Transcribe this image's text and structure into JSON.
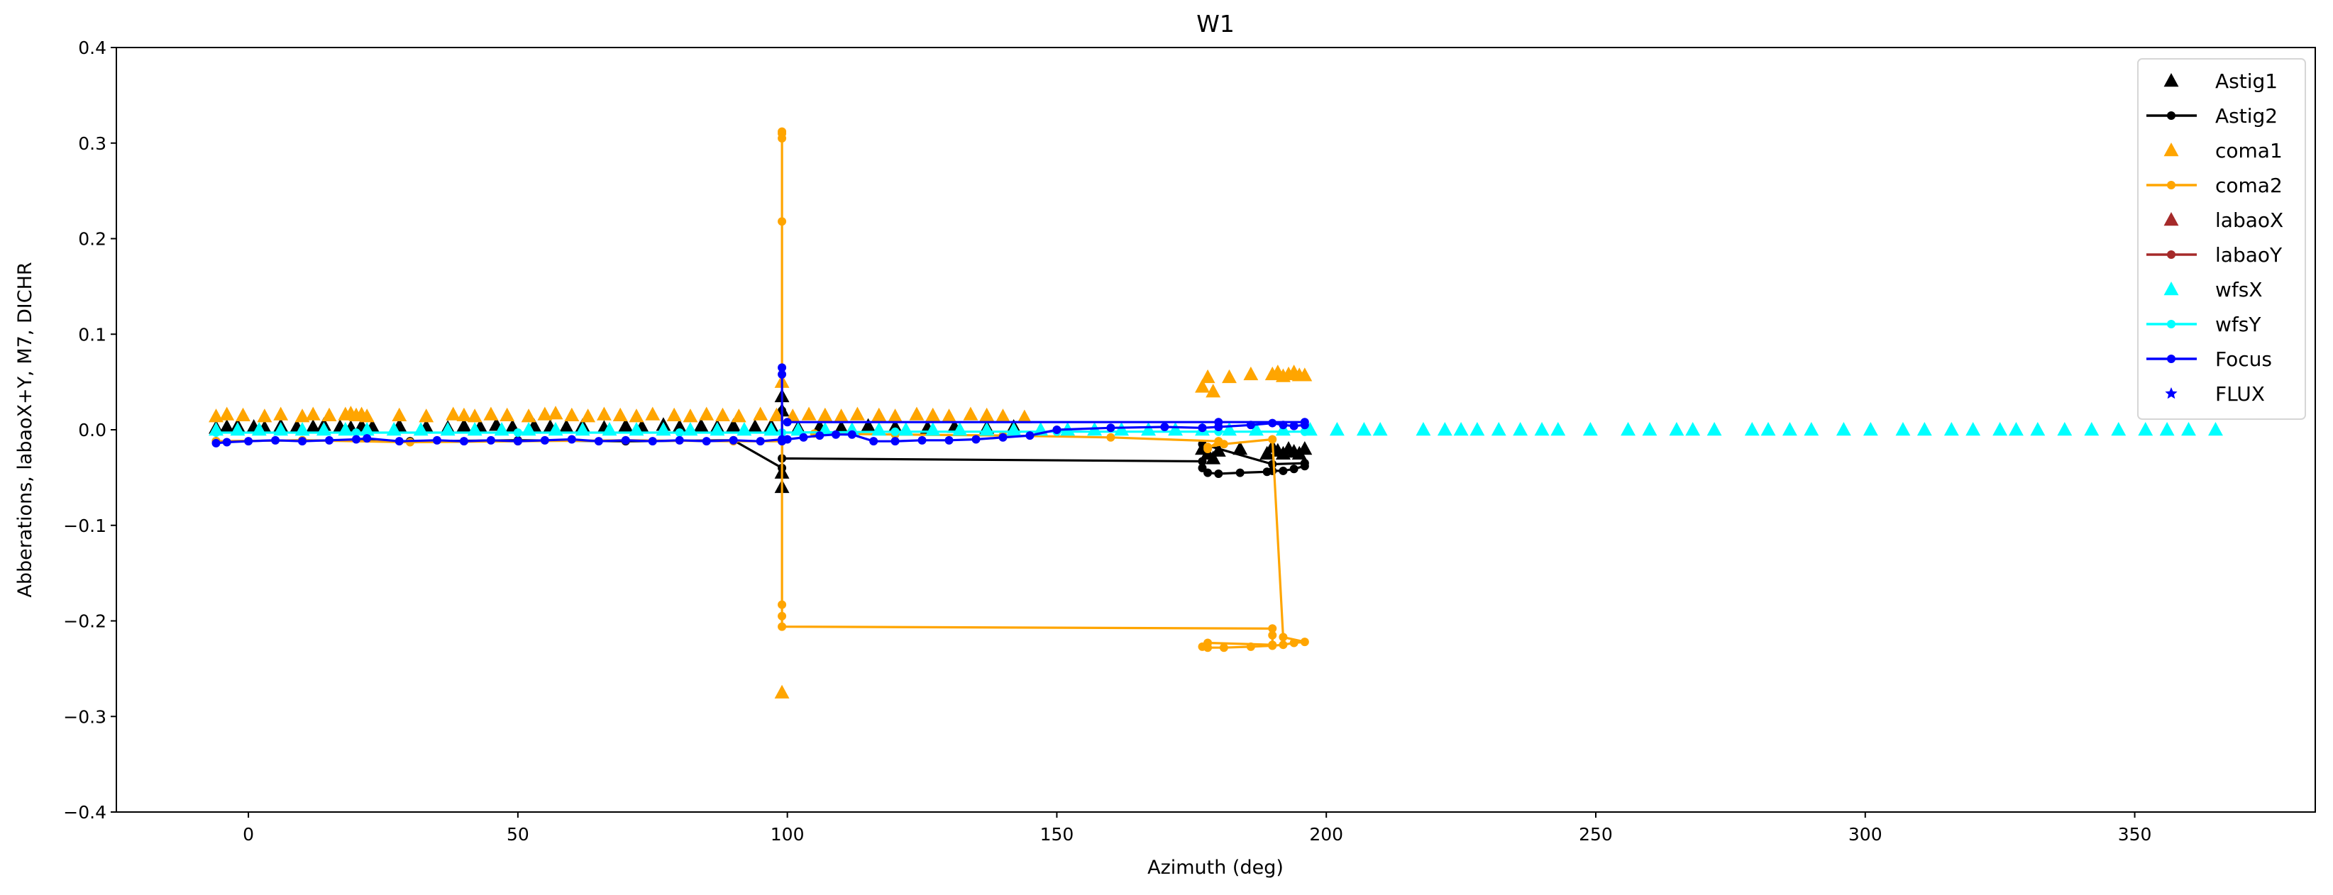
{
  "chart_data": {
    "type": "scatter",
    "title": "W1",
    "xlabel": "Azimuth (deg)",
    "ylabel": "Abberations, labaoX+Y, M7, DICHR",
    "xlim": [
      -24.5,
      383.5
    ],
    "ylim": [
      -0.4,
      0.4
    ],
    "xticks": [
      0,
      50,
      100,
      150,
      200,
      250,
      300,
      350
    ],
    "xtick_labels": [
      "0",
      "50",
      "100",
      "150",
      "200",
      "250",
      "300",
      "350"
    ],
    "yticks": [
      -0.4,
      -0.3,
      -0.2,
      -0.1,
      0.0,
      0.1,
      0.2,
      0.3,
      0.4
    ],
    "ytick_labels": [
      "−0.4",
      "−0.3",
      "−0.2",
      "−0.1",
      "0.0",
      "0.1",
      "0.2",
      "0.3",
      "0.4"
    ],
    "grid": false,
    "legend_position": "top-right",
    "series": [
      {
        "name": "Astig1",
        "style": "triangle",
        "color": "#000000",
        "x": [
          -6,
          -4,
          -2,
          1,
          3,
          6,
          9,
          12,
          14,
          17,
          19,
          21,
          23,
          28,
          33,
          37,
          40,
          43,
          46,
          49,
          53,
          56,
          59,
          62,
          66,
          70,
          73,
          77,
          80,
          84,
          87,
          90,
          94,
          97,
          99,
          99,
          99,
          99,
          102,
          106,
          110,
          115,
          120,
          126,
          131,
          137,
          142,
          177,
          178,
          179,
          180,
          184,
          189,
          190,
          191,
          192,
          193,
          194,
          195,
          196
        ],
        "y": [
          0.002,
          0.003,
          0.004,
          0.003,
          0.002,
          0.004,
          0.003,
          0.003,
          0.005,
          0.003,
          0.002,
          0.004,
          0.003,
          0.004,
          0.003,
          0.002,
          0.004,
          0.003,
          0.005,
          0.003,
          0.004,
          0.003,
          0.003,
          0.004,
          0.002,
          0.004,
          0.003,
          0.005,
          0.003,
          0.004,
          0.003,
          0.004,
          0.003,
          0.004,
          -0.06,
          -0.045,
          0.035,
          0.02,
          0.002,
          0.003,
          0.002,
          0.004,
          0.003,
          0.002,
          0.003,
          0.002,
          0.003,
          -0.02,
          -0.025,
          -0.03,
          -0.022,
          -0.02,
          -0.025,
          -0.018,
          -0.022,
          -0.025,
          -0.02,
          -0.023,
          -0.025,
          -0.02
        ]
      },
      {
        "name": "Astig2",
        "style": "line",
        "color": "#000000",
        "x": [
          -6,
          10,
          30,
          50,
          70,
          90,
          99,
          99,
          99,
          177,
          177,
          178,
          180,
          184,
          189,
          190,
          192,
          194,
          196,
          196,
          190,
          177
        ],
        "y": [
          -0.012,
          -0.011,
          -0.012,
          -0.011,
          -0.012,
          -0.011,
          -0.04,
          0.02,
          -0.03,
          -0.033,
          -0.04,
          -0.045,
          -0.046,
          -0.045,
          -0.044,
          -0.043,
          -0.043,
          -0.041,
          -0.038,
          -0.035,
          -0.036,
          -0.015
        ]
      },
      {
        "name": "coma1",
        "style": "triangle",
        "color": "#FFA500",
        "x": [
          -6,
          -4,
          -1,
          3,
          6,
          10,
          12,
          15,
          18,
          19,
          20,
          21,
          22,
          28,
          33,
          38,
          40,
          42,
          45,
          48,
          52,
          55,
          57,
          60,
          63,
          66,
          69,
          72,
          75,
          79,
          82,
          85,
          88,
          91,
          95,
          98,
          99,
          99,
          101,
          104,
          107,
          110,
          113,
          117,
          120,
          124,
          127,
          130,
          134,
          137,
          140,
          144,
          177,
          178,
          179,
          182,
          186,
          190,
          191,
          192,
          193,
          194,
          195,
          196
        ],
        "y": [
          0.014,
          0.016,
          0.015,
          0.014,
          0.016,
          0.014,
          0.016,
          0.015,
          0.016,
          0.017,
          0.015,
          0.016,
          0.014,
          0.015,
          0.014,
          0.016,
          0.015,
          0.014,
          0.016,
          0.015,
          0.014,
          0.016,
          0.017,
          0.015,
          0.014,
          0.016,
          0.015,
          0.014,
          0.016,
          0.015,
          0.014,
          0.016,
          0.015,
          0.014,
          0.016,
          0.015,
          -0.275,
          0.05,
          0.014,
          0.016,
          0.015,
          0.014,
          0.016,
          0.015,
          0.014,
          0.016,
          0.015,
          0.014,
          0.016,
          0.015,
          0.014,
          0.013,
          0.045,
          0.055,
          0.04,
          0.055,
          0.058,
          0.058,
          0.06,
          0.056,
          0.058,
          0.06,
          0.057,
          0.057
        ]
      },
      {
        "name": "coma2",
        "style": "line",
        "color": "#FFA500",
        "x": [
          -6,
          10,
          30,
          50,
          70,
          90,
          99,
          99,
          99,
          99,
          99,
          99,
          99,
          99,
          190,
          190,
          190,
          178,
          177,
          178,
          181,
          186,
          190,
          192,
          194,
          196,
          192,
          190,
          181,
          178,
          178,
          180,
          160,
          140,
          120,
          105
        ],
        "y": [
          -0.012,
          -0.011,
          -0.013,
          -0.012,
          -0.011,
          -0.012,
          -0.012,
          0.31,
          0.312,
          0.305,
          0.218,
          -0.183,
          -0.195,
          -0.206,
          -0.208,
          -0.215,
          -0.225,
          -0.223,
          -0.227,
          -0.228,
          -0.228,
          -0.227,
          -0.226,
          -0.225,
          -0.223,
          -0.222,
          -0.217,
          -0.01,
          -0.015,
          -0.018,
          -0.02,
          -0.012,
          -0.008,
          -0.006,
          -0.005,
          -0.004
        ]
      },
      {
        "name": "labaoX",
        "style": "triangle",
        "color": "#A52A2A",
        "x": [],
        "y": []
      },
      {
        "name": "labaoY",
        "style": "line",
        "color": "#A52A2A",
        "x": [],
        "y": []
      },
      {
        "name": "wfsX",
        "style": "triangle",
        "color": "#00FFFF",
        "x": [
          -6,
          -2,
          2,
          6,
          10,
          14,
          18,
          22,
          27,
          32,
          37,
          42,
          47,
          52,
          57,
          62,
          67,
          72,
          77,
          82,
          87,
          92,
          97,
          102,
          107,
          112,
          117,
          122,
          127,
          132,
          137,
          142,
          147,
          152,
          157,
          162,
          167,
          172,
          177,
          182,
          187,
          192,
          197,
          202,
          207,
          210,
          218,
          222,
          225,
          228,
          232,
          236,
          240,
          243,
          249,
          256,
          260,
          265,
          268,
          272,
          279,
          282,
          286,
          290,
          296,
          301,
          307,
          311,
          316,
          320,
          325,
          328,
          332,
          337,
          342,
          347,
          352,
          356,
          360,
          365
        ],
        "y": [
          0,
          0,
          0,
          0,
          0,
          0,
          0,
          0,
          0,
          0,
          0,
          0,
          0,
          0,
          0,
          0,
          0,
          0,
          0,
          0,
          0,
          0,
          0,
          0,
          0,
          0,
          0,
          0,
          0,
          0,
          0,
          0,
          0,
          0,
          0,
          0,
          0,
          0,
          0,
          0,
          0,
          0,
          0,
          0,
          0,
          0,
          0,
          0,
          0,
          0,
          0,
          0,
          0,
          0,
          0,
          0,
          0,
          0,
          0,
          0,
          0,
          0,
          0,
          0,
          0,
          0,
          0,
          0,
          0,
          0,
          0,
          0,
          0,
          0,
          0,
          0,
          0,
          0,
          0,
          0
        ]
      },
      {
        "name": "wfsY",
        "style": "line",
        "color": "#00FFFF",
        "x": [
          -6,
          20,
          50,
          80,
          99,
          120,
          150,
          180,
          196
        ],
        "y": [
          -0.003,
          -0.003,
          -0.003,
          -0.003,
          -0.003,
          -0.002,
          -0.002,
          -0.002,
          -0.002
        ]
      },
      {
        "name": "Focus",
        "style": "line",
        "color": "#0000FF",
        "x": [
          -6,
          -4,
          0,
          5,
          10,
          15,
          20,
          22,
          28,
          35,
          40,
          45,
          50,
          55,
          60,
          65,
          70,
          75,
          80,
          85,
          90,
          95,
          99,
          99,
          99,
          99,
          100,
          103,
          106,
          109,
          112,
          116,
          120,
          125,
          130,
          135,
          140,
          145,
          150,
          160,
          170,
          177,
          180,
          186,
          190,
          192,
          194,
          196,
          196,
          180,
          100
        ],
        "y": [
          -0.014,
          -0.013,
          -0.012,
          -0.011,
          -0.012,
          -0.011,
          -0.01,
          -0.009,
          -0.012,
          -0.011,
          -0.012,
          -0.011,
          -0.012,
          -0.011,
          -0.01,
          -0.012,
          -0.011,
          -0.012,
          -0.011,
          -0.012,
          -0.011,
          -0.012,
          -0.01,
          0.065,
          0.058,
          -0.012,
          -0.01,
          -0.008,
          -0.006,
          -0.005,
          -0.005,
          -0.012,
          -0.012,
          -0.011,
          -0.011,
          -0.01,
          -0.008,
          -0.006,
          0.0,
          0.002,
          0.003,
          0.002,
          0.003,
          0.005,
          0.007,
          0.005,
          0.004,
          0.005,
          0.008,
          0.008,
          0.008
        ]
      },
      {
        "name": "FLUX",
        "style": "star",
        "color": "#0000FF",
        "x": [],
        "y": []
      }
    ]
  }
}
